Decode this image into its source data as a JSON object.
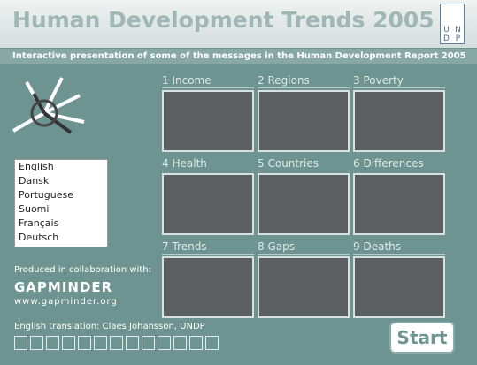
{
  "header": {
    "title": "Human Development Trends 2005",
    "logo": [
      "U",
      "N",
      "D",
      "P"
    ]
  },
  "subtitle": "Interactive presentation of some of the messages in the Human Development Report 2005",
  "languages": [
    "English",
    "Dansk",
    "Portuguese",
    "Suomi",
    "Français",
    "Deutsch"
  ],
  "tiles": [
    {
      "number": "1",
      "label": "Income"
    },
    {
      "number": "2",
      "label": "Regions"
    },
    {
      "number": "3",
      "label": "Poverty"
    },
    {
      "number": "4",
      "label": "Health"
    },
    {
      "number": "5",
      "label": "Countries"
    },
    {
      "number": "6",
      "label": "Differences"
    },
    {
      "number": "7",
      "label": "Trends"
    },
    {
      "number": "8",
      "label": "Gaps"
    },
    {
      "number": "9",
      "label": "Deaths"
    }
  ],
  "credits": {
    "produced": "Produced in collaboration with:",
    "partner": "GAPMINDER",
    "url": "www.gapminder.org",
    "translation": "English translation: Claes Johansson, UNDP"
  },
  "start": "Start"
}
